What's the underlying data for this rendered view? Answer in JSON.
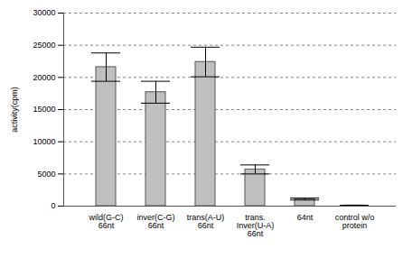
{
  "chart_data": {
    "type": "bar",
    "y_label": "activity(cpm)",
    "categories": [
      "wild(G-C)\n66nt",
      "inver(C-G)\n66nt",
      "trans(A-U)\n66nt",
      "trans.\nInver(U-A)\n66nt",
      "64nt",
      "control w/o\nprotein"
    ],
    "values": [
      21600,
      17700,
      22400,
      5700,
      1100,
      100
    ],
    "errors": [
      2200,
      1700,
      2300,
      700,
      150,
      30
    ],
    "color": "#c0c0c0",
    "ylim": [
      0,
      30000
    ],
    "yticks": [
      0,
      5000,
      10000,
      15000,
      20000,
      25000,
      30000
    ],
    "grid": true
  }
}
